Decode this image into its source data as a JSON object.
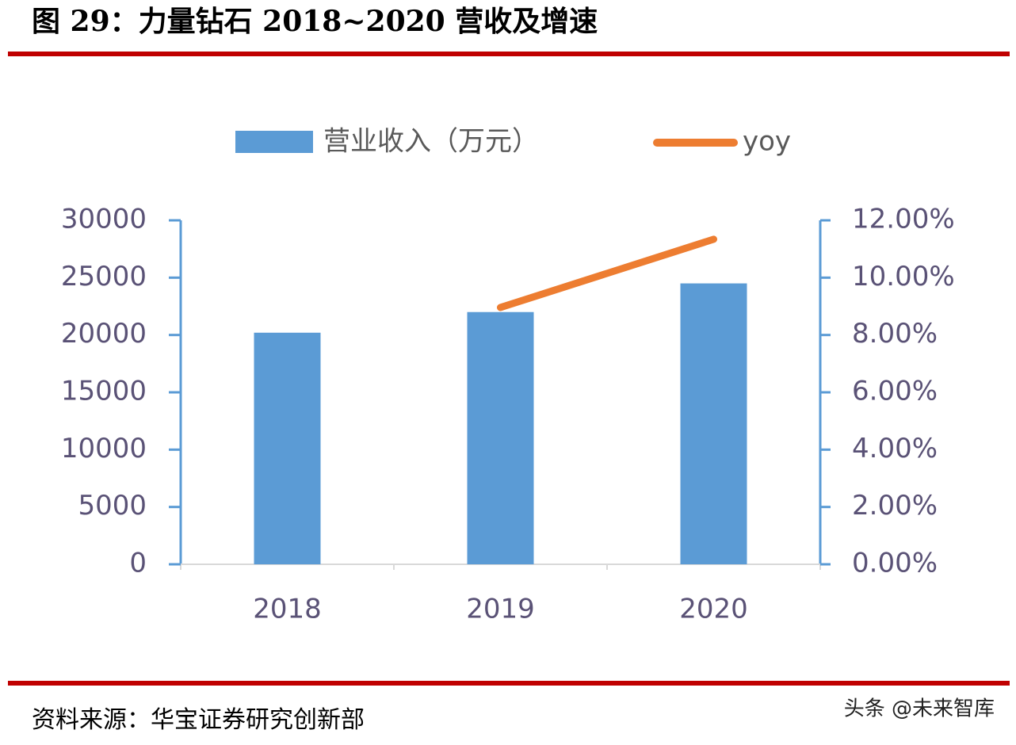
{
  "title": "图 29：力量钻石 2018~2020 营收及增速",
  "source": "资料来源：华宝证券研究创新部",
  "watermark": "头条 @未来智库",
  "chart_data": {
    "type": "bar",
    "categories": [
      "2018",
      "2019",
      "2020"
    ],
    "series": [
      {
        "name": "营业收入（万元）",
        "type": "bar",
        "color": "#5b9bd5",
        "values": [
          20200,
          22000,
          24500
        ]
      },
      {
        "name": "yoy",
        "type": "line",
        "axis": "y2",
        "color": "#ed7d31",
        "values": [
          null,
          8.96,
          11.34
        ]
      }
    ],
    "ylim": [
      0,
      30000
    ],
    "yticks": [
      0,
      5000,
      10000,
      15000,
      20000,
      25000,
      30000
    ],
    "y2lim": [
      0,
      12
    ],
    "y2ticks": [
      {
        "value": 0,
        "label": "0.00%"
      },
      {
        "value": 2,
        "label": "2.00%"
      },
      {
        "value": 4,
        "label": "4.00%"
      },
      {
        "value": 6,
        "label": "6.00%"
      },
      {
        "value": 8,
        "label": "8.00%"
      },
      {
        "value": 10,
        "label": "10.00%"
      },
      {
        "value": 12,
        "label": "12.00%"
      }
    ],
    "legend": "top",
    "grid": false
  }
}
